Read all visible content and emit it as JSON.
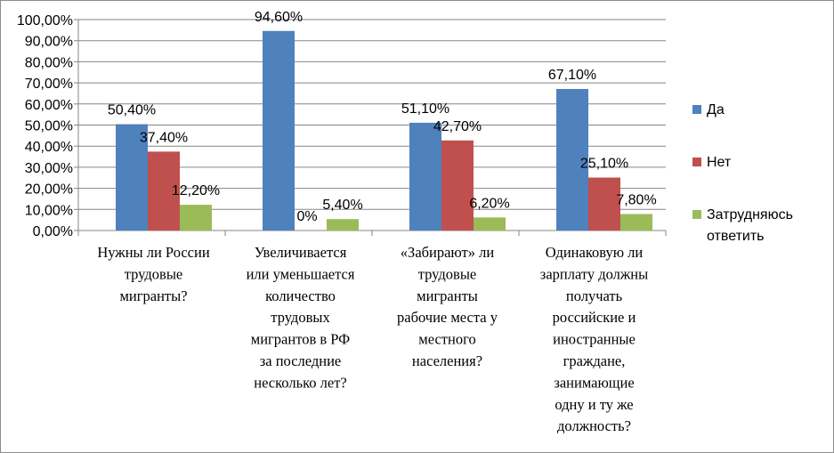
{
  "chart_data": {
    "type": "bar",
    "ylim": [
      0,
      100
    ],
    "yticks": [
      "0,00%",
      "10,00%",
      "20,00%",
      "30,00%",
      "40,00%",
      "50,00%",
      "60,00%",
      "70,00%",
      "80,00%",
      "90,00%",
      "100,00%"
    ],
    "categories": [
      [
        "Нужны ли России",
        "трудовые",
        "мигранты?"
      ],
      [
        "Увеличивается",
        "или уменьшается",
        "количество",
        "трудовых",
        "мигрантов в РФ",
        "за последние",
        "несколько лет?"
      ],
      [
        "«Забирают» ли",
        "трудовые",
        "мигранты",
        "рабочие места у",
        "местного",
        "населения?"
      ],
      [
        "Одинаковую ли",
        "зарплату должны",
        "получать",
        "российские и",
        "иностранные",
        "граждане,",
        "занимающие",
        "одну и ту же",
        "должность?"
      ]
    ],
    "series": [
      {
        "name": "Да",
        "color": "#4F81BD",
        "values": [
          50.4,
          94.6,
          51.1,
          67.1
        ],
        "labels": [
          "50,40%",
          "94,60%",
          "51,10%",
          "67,10%"
        ]
      },
      {
        "name": "Нет",
        "color": "#C0504D",
        "values": [
          37.4,
          0,
          42.7,
          25.1
        ],
        "labels": [
          "37,40%",
          "0%",
          "42,70%",
          "25,10%"
        ]
      },
      {
        "name": "Затрудняюсь ответить",
        "legend_lines": [
          "Затрудняюсь",
          "ответить"
        ],
        "color": "#9BBB59",
        "values": [
          12.2,
          5.4,
          6.2,
          7.8
        ],
        "labels": [
          "12,20%",
          "5,40%",
          "6,20%",
          "7,80%"
        ]
      }
    ],
    "grid": true,
    "legend_position": "right"
  }
}
